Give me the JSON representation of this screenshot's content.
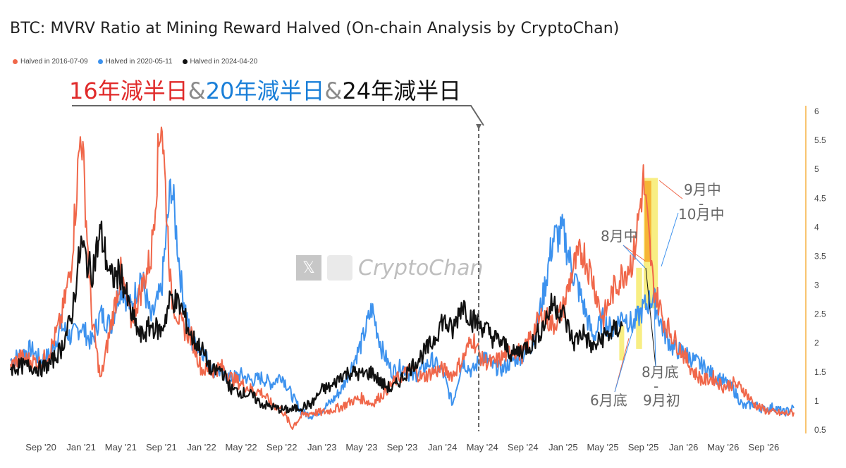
{
  "page": {
    "title": "BTC: MVRV Ratio at Mining Reward Halved (On-chain Analysis by CryptoChan)",
    "headline": [
      {
        "text": "16年減半日",
        "color": "#e02a2a"
      },
      {
        "text": "&",
        "color": "#8a8a8a"
      },
      {
        "text": "20年減半日",
        "color": "#1a7fd8"
      },
      {
        "text": "&",
        "color": "#8a8a8a"
      },
      {
        "text": "24年減半日",
        "color": "#111111"
      }
    ],
    "watermark": {
      "x_glyph": "𝕏",
      "text": "CryptoChan"
    },
    "colors": {
      "s2016": "#f0674a",
      "s2020": "#3d92ee",
      "s2024": "#111111",
      "highlight": "#f5e85a",
      "highlight_peak": "#f5a623",
      "axis_right": "#f5b041"
    }
  },
  "chart_data": {
    "type": "line",
    "title": "BTC: MVRV Ratio at Mining Reward Halved (On-chain Analysis by CryptoChan)",
    "legend": {
      "position": "top-left"
    },
    "x_ticks": [
      "Sep '20",
      "Jan '21",
      "May '21",
      "Sep '21",
      "Jan '22",
      "May '22",
      "Sep '22",
      "Jan '23",
      "May '23",
      "Sep '23",
      "Jan '24",
      "May '24",
      "Sep '24",
      "Jan '25",
      "May '25",
      "Sep '25",
      "Jan '26",
      "May '26",
      "Sep '26"
    ],
    "x_range": [
      "2020-06-01",
      "2026-12-31"
    ],
    "y_range": [
      0.5,
      6
    ],
    "y_ticks": [
      "0.5",
      "1",
      "1.5",
      "2",
      "2.5",
      "3",
      "3.5",
      "4",
      "4.5",
      "5",
      "5.5",
      "6"
    ],
    "grid": false,
    "halving_marker_date": "2024-04-20",
    "series": [
      {
        "name": "Halved in 2016-07-09",
        "color": "#f0674a",
        "points": [
          [
            "2020-06",
            "1.60"
          ],
          [
            "2020-07",
            "1.75"
          ],
          [
            "2020-08",
            "1.70"
          ],
          [
            "2020-09",
            "1.65"
          ],
          [
            "2020-10",
            "1.90"
          ],
          [
            "2020-11",
            "2.40"
          ],
          [
            "2020-12",
            "3.30"
          ],
          [
            "2021-01",
            "5.75"
          ],
          [
            "2021-02",
            "2.50"
          ],
          [
            "2021-03",
            "1.35"
          ],
          [
            "2021-04",
            "2.30"
          ],
          [
            "2021-05",
            "3.20"
          ],
          [
            "2021-06",
            "2.40"
          ],
          [
            "2021-07",
            "2.90"
          ],
          [
            "2021-08",
            "3.50"
          ],
          [
            "2021-09",
            "6.00"
          ],
          [
            "2021-10",
            "2.80"
          ],
          [
            "2021-11",
            "2.30"
          ],
          [
            "2021-12",
            "2.10"
          ],
          [
            "2022-01",
            "1.55"
          ],
          [
            "2022-02",
            "1.50"
          ],
          [
            "2022-03",
            "1.60"
          ],
          [
            "2022-04",
            "1.40"
          ],
          [
            "2022-05",
            "1.30"
          ],
          [
            "2022-06",
            "1.20"
          ],
          [
            "2022-07",
            "1.15"
          ],
          [
            "2022-08",
            "0.95"
          ],
          [
            "2022-09",
            "0.85"
          ],
          [
            "2022-10",
            "0.55"
          ],
          [
            "2022-11",
            "0.75"
          ],
          [
            "2022-12",
            "0.80"
          ],
          [
            "2023-01",
            "0.80"
          ],
          [
            "2023-02",
            "0.85"
          ],
          [
            "2023-03",
            "0.90"
          ],
          [
            "2023-04",
            "1.00"
          ],
          [
            "2023-05",
            "1.05"
          ],
          [
            "2023-06",
            "0.95"
          ],
          [
            "2023-07",
            "1.10"
          ],
          [
            "2023-08",
            "1.30"
          ],
          [
            "2023-09",
            "1.45"
          ],
          [
            "2023-10",
            "1.55"
          ],
          [
            "2023-11",
            "1.40"
          ],
          [
            "2023-12",
            "1.50"
          ],
          [
            "2024-01",
            "1.55"
          ],
          [
            "2024-02",
            "1.45"
          ],
          [
            "2024-03",
            "1.70"
          ],
          [
            "2024-04",
            "2.10"
          ],
          [
            "2024-05",
            "1.70"
          ],
          [
            "2024-06",
            "1.65"
          ],
          [
            "2024-07",
            "1.75"
          ],
          [
            "2024-08",
            "1.90"
          ],
          [
            "2024-09",
            "1.80"
          ],
          [
            "2024-10",
            "2.20"
          ],
          [
            "2024-11",
            "2.50"
          ],
          [
            "2024-12",
            "2.30"
          ],
          [
            "2025-01",
            "2.60"
          ],
          [
            "2025-02",
            "3.30"
          ],
          [
            "2025-03",
            "3.60"
          ],
          [
            "2025-04",
            "3.10"
          ],
          [
            "2025-05",
            "2.40"
          ],
          [
            "2025-06",
            "2.90"
          ],
          [
            "2025-07",
            "3.20"
          ],
          [
            "2025-08",
            "3.45"
          ],
          [
            "2025-09",
            "4.80"
          ],
          [
            "2025-10",
            "3.00"
          ],
          [
            "2025-11",
            "2.40"
          ],
          [
            "2025-12",
            "2.10"
          ],
          [
            "2026-01",
            "1.80"
          ],
          [
            "2026-02",
            "1.50"
          ],
          [
            "2026-03",
            "1.35"
          ],
          [
            "2026-04",
            "1.40"
          ],
          [
            "2026-05",
            "1.25"
          ],
          [
            "2026-06",
            "1.30"
          ],
          [
            "2026-07",
            "1.20"
          ],
          [
            "2026-08",
            "0.95"
          ],
          [
            "2026-09",
            "0.85"
          ],
          [
            "2026-10",
            "0.80"
          ],
          [
            "2026-11",
            "0.78"
          ],
          [
            "2026-12",
            "0.80"
          ]
        ]
      },
      {
        "name": "Halved in 2020-05-11",
        "color": "#3d92ee",
        "points": [
          [
            "2020-06",
            "1.70"
          ],
          [
            "2020-07",
            "1.80"
          ],
          [
            "2020-08",
            "1.90"
          ],
          [
            "2020-09",
            "1.70"
          ],
          [
            "2020-10",
            "1.80"
          ],
          [
            "2020-11",
            "2.30"
          ],
          [
            "2020-12",
            "2.10"
          ],
          [
            "2021-01",
            "2.30"
          ],
          [
            "2021-02",
            "2.00"
          ],
          [
            "2021-03",
            "2.50"
          ],
          [
            "2021-04",
            "2.30"
          ],
          [
            "2021-05",
            "3.00"
          ],
          [
            "2021-06",
            "2.60"
          ],
          [
            "2021-07",
            "3.20"
          ],
          [
            "2021-08",
            "2.40"
          ],
          [
            "2021-09",
            "2.90"
          ],
          [
            "2021-10",
            "4.80"
          ],
          [
            "2021-11",
            "3.00"
          ],
          [
            "2021-12",
            "2.00"
          ],
          [
            "2022-01",
            "1.90"
          ],
          [
            "2022-02",
            "1.55"
          ],
          [
            "2022-03",
            "1.50"
          ],
          [
            "2022-04",
            "1.40"
          ],
          [
            "2022-05",
            "1.45"
          ],
          [
            "2022-06",
            "1.35"
          ],
          [
            "2022-07",
            "1.40"
          ],
          [
            "2022-08",
            "1.30"
          ],
          [
            "2022-09",
            "1.45"
          ],
          [
            "2022-10",
            "1.10"
          ],
          [
            "2022-11",
            "0.80"
          ],
          [
            "2022-12",
            "0.75"
          ],
          [
            "2023-01",
            "0.85"
          ],
          [
            "2023-02",
            "1.00"
          ],
          [
            "2023-03",
            "1.20"
          ],
          [
            "2023-04",
            "1.60"
          ],
          [
            "2023-05",
            "2.00"
          ],
          [
            "2023-06",
            "2.60"
          ],
          [
            "2023-07",
            "1.90"
          ],
          [
            "2023-08",
            "1.50"
          ],
          [
            "2023-09",
            "1.60"
          ],
          [
            "2023-10",
            "1.40"
          ],
          [
            "2023-11",
            "1.55"
          ],
          [
            "2023-12",
            "1.70"
          ],
          [
            "2024-01",
            "1.50"
          ],
          [
            "2024-02",
            "0.95"
          ],
          [
            "2024-03",
            "1.70"
          ],
          [
            "2024-04",
            "1.50"
          ],
          [
            "2024-05",
            "1.80"
          ],
          [
            "2024-06",
            "1.60"
          ],
          [
            "2024-07",
            "1.55"
          ],
          [
            "2024-08",
            "1.70"
          ],
          [
            "2024-09",
            "1.80"
          ],
          [
            "2024-10",
            "2.00"
          ],
          [
            "2024-11",
            "2.80"
          ],
          [
            "2024-12",
            "3.80"
          ],
          [
            "2025-01",
            "3.90"
          ],
          [
            "2025-02",
            "3.20"
          ],
          [
            "2025-03",
            "2.70"
          ],
          [
            "2025-04",
            "2.10"
          ],
          [
            "2025-05",
            "2.40"
          ],
          [
            "2025-06",
            "2.20"
          ],
          [
            "2025-07",
            "2.50"
          ],
          [
            "2025-08",
            "2.30"
          ],
          [
            "2025-09",
            "2.60"
          ],
          [
            "2025-10",
            "2.80"
          ],
          [
            "2025-11",
            "2.20"
          ],
          [
            "2025-12",
            "1.90"
          ],
          [
            "2026-01",
            "1.85"
          ],
          [
            "2026-02",
            "1.70"
          ],
          [
            "2026-03",
            "1.60"
          ],
          [
            "2026-04",
            "1.45"
          ],
          [
            "2026-05",
            "1.35"
          ],
          [
            "2026-06",
            "1.20"
          ],
          [
            "2026-07",
            "0.90"
          ],
          [
            "2026-08",
            "0.95"
          ],
          [
            "2026-09",
            "0.85"
          ],
          [
            "2026-10",
            "0.90"
          ],
          [
            "2026-11",
            "0.80"
          ],
          [
            "2026-12",
            "0.88"
          ]
        ]
      },
      {
        "name": "Halved in 2024-04-20",
        "color": "#111111",
        "points": [
          [
            "2020-06",
            "1.55"
          ],
          [
            "2020-07",
            "1.60"
          ],
          [
            "2020-08",
            "1.60"
          ],
          [
            "2020-09",
            "1.55"
          ],
          [
            "2020-10",
            "1.65"
          ],
          [
            "2020-11",
            "1.90"
          ],
          [
            "2020-12",
            "2.40"
          ],
          [
            "2021-01",
            "3.70"
          ],
          [
            "2021-02",
            "3.20"
          ],
          [
            "2021-03",
            "3.90"
          ],
          [
            "2021-04",
            "3.10"
          ],
          [
            "2021-05",
            "3.20"
          ],
          [
            "2021-06",
            "2.50"
          ],
          [
            "2021-07",
            "2.10"
          ],
          [
            "2021-08",
            "2.30"
          ],
          [
            "2021-09",
            "2.20"
          ],
          [
            "2021-10",
            "2.80"
          ],
          [
            "2021-11",
            "2.60"
          ],
          [
            "2021-12",
            "2.10"
          ],
          [
            "2022-01",
            "1.90"
          ],
          [
            "2022-02",
            "1.50"
          ],
          [
            "2022-03",
            "1.55"
          ],
          [
            "2022-04",
            "1.20"
          ],
          [
            "2022-05",
            "1.15"
          ],
          [
            "2022-06",
            "1.10"
          ],
          [
            "2022-07",
            "0.95"
          ],
          [
            "2022-08",
            "0.90"
          ],
          [
            "2022-09",
            "0.85"
          ],
          [
            "2022-10",
            "0.85"
          ],
          [
            "2022-11",
            "0.90"
          ],
          [
            "2022-12",
            "0.95"
          ],
          [
            "2023-01",
            "1.20"
          ],
          [
            "2023-02",
            "1.25"
          ],
          [
            "2023-03",
            "1.45"
          ],
          [
            "2023-04",
            "1.50"
          ],
          [
            "2023-05",
            "1.45"
          ],
          [
            "2023-06",
            "1.50"
          ],
          [
            "2023-07",
            "1.30"
          ],
          [
            "2023-08",
            "1.20"
          ],
          [
            "2023-09",
            "1.40"
          ],
          [
            "2023-10",
            "1.60"
          ],
          [
            "2023-11",
            "1.80"
          ],
          [
            "2023-12",
            "2.00"
          ],
          [
            "2024-01",
            "2.40"
          ],
          [
            "2024-02",
            "2.20"
          ],
          [
            "2024-03",
            "2.70"
          ],
          [
            "2024-04",
            "2.40"
          ],
          [
            "2024-05",
            "2.30"
          ],
          [
            "2024-06",
            "2.10"
          ],
          [
            "2024-07",
            "2.00"
          ],
          [
            "2024-08",
            "1.80"
          ],
          [
            "2024-09",
            "1.90"
          ],
          [
            "2024-10",
            "2.00"
          ],
          [
            "2024-11",
            "2.30"
          ],
          [
            "2024-12",
            "2.70"
          ],
          [
            "2025-01",
            "2.50"
          ],
          [
            "2025-02",
            "2.00"
          ],
          [
            "2025-03",
            "2.20"
          ],
          [
            "2025-04",
            "1.90"
          ],
          [
            "2025-05",
            "2.10"
          ],
          [
            "2025-06",
            "2.20"
          ],
          [
            "2025-07",
            "2.30"
          ]
        ]
      }
    ],
    "annotations": [
      {
        "id": "jun-end",
        "text": "6月底"
      },
      {
        "id": "aug-mid",
        "text": "8月中"
      },
      {
        "id": "aug-end",
        "text": "8月底"
      },
      {
        "id": "dash-1",
        "text": "-"
      },
      {
        "id": "sep-start",
        "text": "9月初"
      },
      {
        "id": "sep-mid",
        "text": "9月中"
      },
      {
        "id": "dash-2",
        "text": "-"
      },
      {
        "id": "oct-mid",
        "text": "10月中"
      }
    ]
  }
}
